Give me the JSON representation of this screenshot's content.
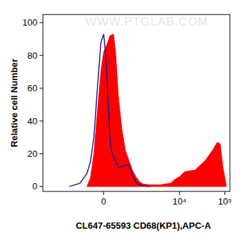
{
  "chart_data": {
    "type": "line",
    "x_label": "CL647-65593 CD68(KP1),APC-A",
    "y_label": "Relative cell Number",
    "annotations": [
      "WWW.PTGLAB.COM"
    ],
    "xlim": [
      -4620,
      129500
    ],
    "xticks": [
      0,
      {
        "value": 10000,
        "label": "10⁴"
      },
      {
        "value": 100000,
        "label": "10⁵"
      }
    ],
    "ylim": [
      -3,
      105
    ],
    "yticks": [
      0,
      20,
      40,
      60,
      80,
      100
    ],
    "series": [
      {
        "type": "area",
        "color": "#ff0000",
        "x": [
          -404,
          -306,
          -218,
          -137,
          -60,
          0,
          90,
          137,
          218,
          270,
          344,
          448,
          563,
          700,
          857,
          1040,
          1250,
          1510,
          2170,
          3720,
          6330,
          7560,
          10000,
          12900,
          21900,
          37400,
          53300,
          68300,
          78700,
          90400,
          108000
        ],
        "values": [
          0,
          5,
          20,
          45,
          70,
          82,
          88,
          92,
          93,
          82,
          55,
          35,
          22,
          16,
          10,
          6,
          3,
          1.5,
          1,
          1,
          2,
          4,
          6,
          9,
          10,
          16,
          22,
          27,
          26,
          12,
          0
        ]
      },
      {
        "type": "line",
        "color": "#1a1a8c",
        "x": [
          -1165,
          -641,
          -404,
          -306,
          -218,
          -137,
          -60,
          0,
          45,
          90,
          137,
          169,
          270,
          344,
          448,
          563,
          700,
          793,
          857,
          1040,
          1250,
          1510,
          2170
        ],
        "values": [
          0,
          2,
          8,
          15,
          30,
          60,
          88,
          93,
          80,
          55,
          30,
          22,
          15,
          12,
          12,
          13,
          13,
          10,
          7,
          3,
          1,
          0.5,
          0
        ]
      }
    ]
  }
}
